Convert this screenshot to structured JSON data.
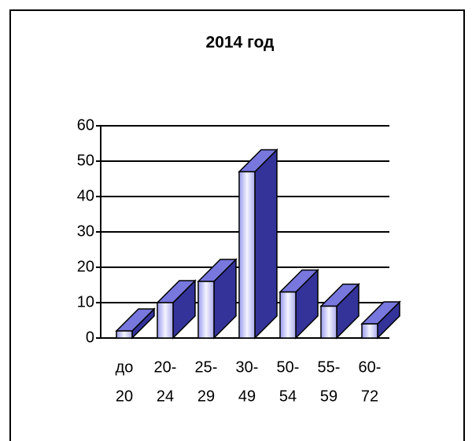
{
  "chart_data": {
    "type": "bar3d",
    "title": "2014 год",
    "categories": [
      [
        "до",
        "20"
      ],
      [
        "20-",
        "24"
      ],
      [
        "25-",
        "29"
      ],
      [
        "30-",
        "49"
      ],
      [
        "50-",
        "54"
      ],
      [
        "55-",
        "59"
      ],
      [
        "60-",
        "72"
      ]
    ],
    "values": [
      2,
      10,
      16,
      47,
      13,
      9,
      4
    ],
    "color": "#333399",
    "ylim": [
      0,
      60
    ],
    "yticks": [
      0,
      10,
      20,
      30,
      40,
      50,
      60
    ],
    "grid": true
  }
}
